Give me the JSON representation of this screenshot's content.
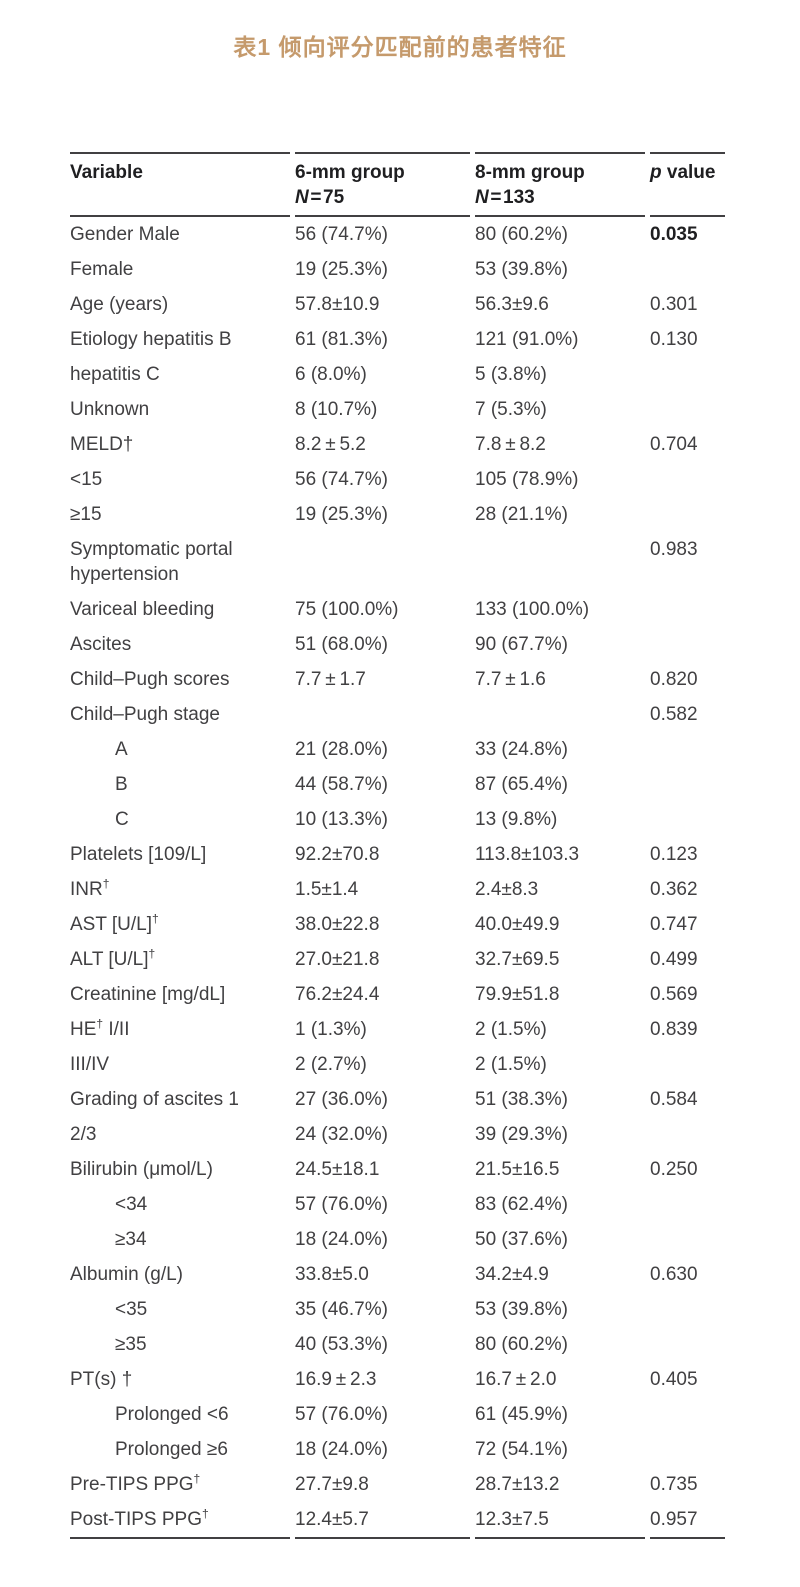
{
  "title": "表1 倾向评分匹配前的患者特征",
  "colors": {
    "title_accent": "#c59a6c",
    "body_text": "#414042",
    "bold_text": "#1f1f21",
    "rule": "#414042"
  },
  "table": {
    "headers": {
      "variable": "Variable",
      "group6_name": "6-mm group",
      "group6_n_italic": "N",
      "group6_n_value": " = 75",
      "group8_name": "8-mm group",
      "group8_n_italic": "N",
      "group8_n_value": " = 133",
      "p_italic": "p",
      "p_rest": " value"
    },
    "rows": [
      {
        "pre": "Gender Male",
        "sup": "",
        "post": "",
        "g6": "56 (74.7%)",
        "g8": "80 (60.2%)",
        "p": "0.035",
        "pb": true,
        "indent": false
      },
      {
        "pre": "Female",
        "sup": "",
        "post": "",
        "g6": "19 (25.3%)",
        "g8": "53 (39.8%)",
        "p": "",
        "pb": false,
        "indent": false
      },
      {
        "pre": "Age (years)",
        "sup": "",
        "post": "",
        "g6": "57.8±10.9",
        "g8": "56.3±9.6",
        "p": "0.301",
        "pb": false,
        "indent": false
      },
      {
        "pre": "Etiology hepatitis B",
        "sup": "",
        "post": "",
        "g6": "61 (81.3%)",
        "g8": "121 (91.0%)",
        "p": "0.130",
        "pb": false,
        "indent": false
      },
      {
        "pre": "hepatitis C",
        "sup": "",
        "post": "",
        "g6": "6 (8.0%)",
        "g8": "5 (3.8%)",
        "p": "",
        "pb": false,
        "indent": false
      },
      {
        "pre": "Unknown",
        "sup": "",
        "post": "",
        "g6": "8 (10.7%)",
        "g8": "7 (5.3%)",
        "p": "",
        "pb": false,
        "indent": false
      },
      {
        "pre": "MELD†",
        "sup": "",
        "post": "",
        "g6": "8.2 ± 5.2",
        "g8": "7.8 ± 8.2",
        "p": "0.704",
        "pb": false,
        "indent": false
      },
      {
        "pre": "<15",
        "sup": "",
        "post": "",
        "g6": "56 (74.7%)",
        "g8": "105 (78.9%)",
        "p": "",
        "pb": false,
        "indent": false
      },
      {
        "pre": "≥15",
        "sup": "",
        "post": "",
        "g6": "19 (25.3%)",
        "g8": "28 (21.1%)",
        "p": "",
        "pb": false,
        "indent": false
      },
      {
        "pre": "Symptomatic portal hypertension",
        "sup": "",
        "post": "",
        "g6": "",
        "g8": "",
        "p": "0.983",
        "pb": false,
        "indent": false
      },
      {
        "pre": "Variceal bleeding",
        "sup": "",
        "post": "",
        "g6": "75 (100.0%)",
        "g8": "133 (100.0%)",
        "p": "",
        "pb": false,
        "indent": false
      },
      {
        "pre": "Ascites",
        "sup": "",
        "post": "",
        "g6": "51 (68.0%)",
        "g8": "90 (67.7%)",
        "p": "",
        "pb": false,
        "indent": false
      },
      {
        "pre": "Child–Pugh scores",
        "sup": "",
        "post": "",
        "g6": "7.7 ± 1.7",
        "g8": "7.7 ± 1.6",
        "p": "0.820",
        "pb": false,
        "indent": false
      },
      {
        "pre": "Child–Pugh stage",
        "sup": "",
        "post": "",
        "g6": "",
        "g8": "",
        "p": "0.582",
        "pb": false,
        "indent": false
      },
      {
        "pre": "A",
        "sup": "",
        "post": "",
        "g6": "21 (28.0%)",
        "g8": "33 (24.8%)",
        "p": "",
        "pb": false,
        "indent": true
      },
      {
        "pre": "B",
        "sup": "",
        "post": "",
        "g6": "44 (58.7%)",
        "g8": "87 (65.4%)",
        "p": "",
        "pb": false,
        "indent": true
      },
      {
        "pre": "C",
        "sup": "",
        "post": "",
        "g6": "10 (13.3%)",
        "g8": "13 (9.8%)",
        "p": "",
        "pb": false,
        "indent": true
      },
      {
        "pre": "Platelets [109/L]",
        "sup": "",
        "post": "",
        "g6": "92.2±70.8",
        "g8": "113.8±103.3",
        "p": "0.123",
        "pb": false,
        "indent": false
      },
      {
        "pre": "INR",
        "sup": "†",
        "post": "",
        "g6": "1.5±1.4",
        "g8": "2.4±8.3",
        "p": "0.362",
        "pb": false,
        "indent": false
      },
      {
        "pre": "AST [U/L]",
        "sup": "†",
        "post": "",
        "g6": "38.0±22.8",
        "g8": "40.0±49.9",
        "p": "0.747",
        "pb": false,
        "indent": false
      },
      {
        "pre": "ALT [U/L]",
        "sup": "†",
        "post": "",
        "g6": "27.0±21.8",
        "g8": "32.7±69.5",
        "p": "0.499",
        "pb": false,
        "indent": false
      },
      {
        "pre": "Creatinine [mg/dL]",
        "sup": "",
        "post": "",
        "g6": "76.2±24.4",
        "g8": "79.9±51.8",
        "p": "0.569",
        "pb": false,
        "indent": false
      },
      {
        "pre": "HE",
        "sup": "†",
        "post": " I/II",
        "g6": "1 (1.3%)",
        "g8": "2 (1.5%)",
        "p": "0.839",
        "pb": false,
        "indent": false
      },
      {
        "pre": "III/IV",
        "sup": "",
        "post": "",
        "g6": "2 (2.7%)",
        "g8": "2 (1.5%)",
        "p": "",
        "pb": false,
        "indent": false
      },
      {
        "pre": "Grading of ascites 1",
        "sup": "",
        "post": "",
        "g6": "27 (36.0%)",
        "g8": "51 (38.3%)",
        "p": "0.584",
        "pb": false,
        "indent": false
      },
      {
        "pre": "2/3",
        "sup": "",
        "post": "",
        "g6": "24 (32.0%)",
        "g8": "39 (29.3%)",
        "p": "",
        "pb": false,
        "indent": false
      },
      {
        "pre": "Bilirubin (μmol/L)",
        "sup": "",
        "post": "",
        "g6": "24.5±18.1",
        "g8": "21.5±16.5",
        "p": "0.250",
        "pb": false,
        "indent": false
      },
      {
        "pre": "<34",
        "sup": "",
        "post": "",
        "g6": "57 (76.0%)",
        "g8": "83 (62.4%)",
        "p": "",
        "pb": false,
        "indent": true
      },
      {
        "pre": "≥34",
        "sup": "",
        "post": "",
        "g6": "18 (24.0%)",
        "g8": "50 (37.6%)",
        "p": "",
        "pb": false,
        "indent": true
      },
      {
        "pre": "Albumin (g/L)",
        "sup": "",
        "post": "",
        "g6": "33.8±5.0",
        "g8": "34.2±4.9",
        "p": "0.630",
        "pb": false,
        "indent": false
      },
      {
        "pre": "<35",
        "sup": "",
        "post": "",
        "g6": "35 (46.7%)",
        "g8": "53 (39.8%)",
        "p": "",
        "pb": false,
        "indent": true
      },
      {
        "pre": "≥35",
        "sup": "",
        "post": "",
        "g6": "40 (53.3%)",
        "g8": "80 (60.2%)",
        "p": "",
        "pb": false,
        "indent": true
      },
      {
        "pre": "PT(s) †",
        "sup": "",
        "post": "",
        "g6": "16.9 ± 2.3",
        "g8": "16.7 ± 2.0",
        "p": "0.405",
        "pb": false,
        "indent": false
      },
      {
        "pre": "Prolonged <6",
        "sup": "",
        "post": "",
        "g6": "57 (76.0%)",
        "g8": "61 (45.9%)",
        "p": "",
        "pb": false,
        "indent": true
      },
      {
        "pre": "Prolonged ≥6",
        "sup": "",
        "post": "",
        "g6": "18 (24.0%)",
        "g8": "72 (54.1%)",
        "p": "",
        "pb": false,
        "indent": true
      },
      {
        "pre": "Pre-TIPS PPG",
        "sup": "†",
        "post": "",
        "g6": "27.7±9.8",
        "g8": "28.7±13.2",
        "p": "0.735",
        "pb": false,
        "indent": false
      },
      {
        "pre": "Post-TIPS PPG",
        "sup": "†",
        "post": "",
        "g6": "12.4±5.7",
        "g8": "12.3±7.5",
        "p": "0.957",
        "pb": false,
        "indent": false
      }
    ]
  }
}
